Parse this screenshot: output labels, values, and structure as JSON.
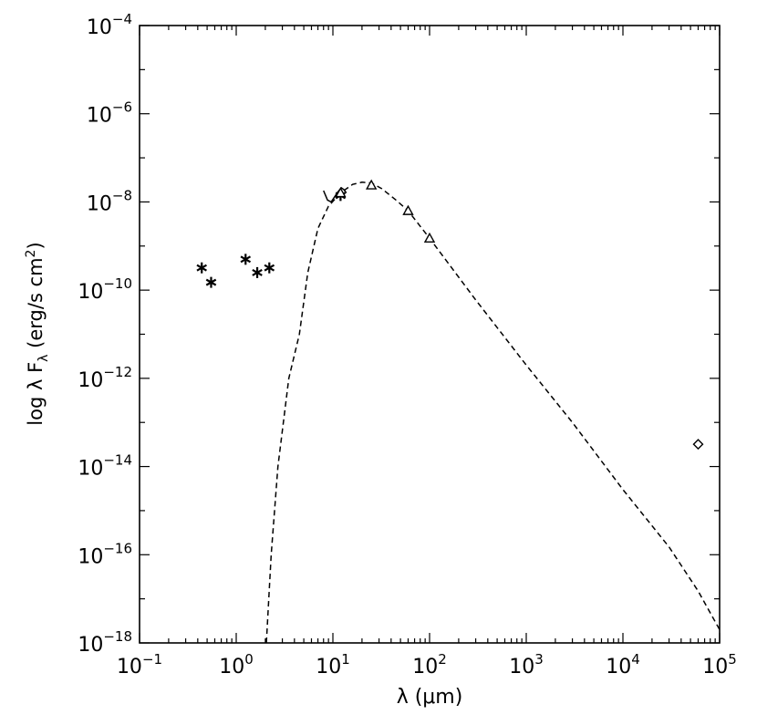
{
  "chart_data": {
    "type": "scatter",
    "x_scale": "log",
    "y_scale": "log",
    "xlabel": "λ (μm)",
    "ylabel": "log λ F",
    "ylabel_sub": "λ",
    "ylabel_units": " (erg/s cm",
    "ylabel_units_sup": "2",
    "ylabel_close": ")",
    "xlim": [
      0.1,
      100000
    ],
    "ylim": [
      1e-18,
      0.0001
    ],
    "x_ticks": [
      {
        "value": 0.1,
        "base": "10",
        "exp": "−1"
      },
      {
        "value": 1,
        "base": "10",
        "exp": "0"
      },
      {
        "value": 10,
        "base": "10",
        "exp": "1"
      },
      {
        "value": 100,
        "base": "10",
        "exp": "2"
      },
      {
        "value": 1000,
        "base": "10",
        "exp": "3"
      },
      {
        "value": 10000,
        "base": "10",
        "exp": "4"
      },
      {
        "value": 100000,
        "base": "10",
        "exp": "5"
      }
    ],
    "y_ticks": [
      {
        "value": 1e-18,
        "base": "10",
        "exp": "−18"
      },
      {
        "value": 1e-16,
        "base": "10",
        "exp": "−16"
      },
      {
        "value": 1e-14,
        "base": "10",
        "exp": "−14"
      },
      {
        "value": 1e-12,
        "base": "10",
        "exp": "−12"
      },
      {
        "value": 1e-10,
        "base": "10",
        "exp": "−10"
      },
      {
        "value": 1e-08,
        "base": "10",
        "exp": "−8"
      },
      {
        "value": 1e-06,
        "base": "10",
        "exp": "−6"
      },
      {
        "value": 0.0001,
        "base": "10",
        "exp": "−4"
      }
    ],
    "grid": false,
    "series": [
      {
        "marker": "asterisk",
        "points": [
          {
            "x": 0.44,
            "y": 3.2e-10
          },
          {
            "x": 0.55,
            "y": 1.5e-10
          },
          {
            "x": 1.25,
            "y": 5e-10
          },
          {
            "x": 1.65,
            "y": 2.5e-10
          },
          {
            "x": 2.2,
            "y": 3.2e-10
          },
          {
            "x": 12,
            "y": 1.4e-08
          }
        ]
      },
      {
        "marker": "triangle",
        "points": [
          {
            "x": 12,
            "y": 1.6e-08
          },
          {
            "x": 25,
            "y": 2.4e-08
          },
          {
            "x": 60,
            "y": 6.3e-09
          },
          {
            "x": 100,
            "y": 1.5e-09
          }
        ]
      },
      {
        "marker": "diamond",
        "points": [
          {
            "x": 60000,
            "y": 3.2e-14
          }
        ]
      },
      {
        "marker": "none",
        "line": "solid",
        "points": [
          {
            "x": 8.0,
            "y": 1.8e-08
          },
          {
            "x": 8.8,
            "y": 1.1e-08
          },
          {
            "x": 9.6,
            "y": 1e-08
          },
          {
            "x": 10.4,
            "y": 1.3e-08
          },
          {
            "x": 11.3,
            "y": 1.7e-08
          },
          {
            "x": 12.2,
            "y": 2.1e-08
          },
          {
            "x": 13.0,
            "y": 1.9e-08
          },
          {
            "x": 13.8,
            "y": 1.6e-08
          }
        ]
      },
      {
        "marker": "none",
        "line": "dashed",
        "points": [
          {
            "x": 2.05,
            "y": 1e-18
          },
          {
            "x": 2.3,
            "y": 1e-16
          },
          {
            "x": 2.7,
            "y": 1e-14
          },
          {
            "x": 3.5,
            "y": 1e-12
          },
          {
            "x": 4.5,
            "y": 1e-11
          },
          {
            "x": 5.5,
            "y": 2.5e-10
          },
          {
            "x": 7,
            "y": 2.5e-09
          },
          {
            "x": 9,
            "y": 8e-09
          },
          {
            "x": 12,
            "y": 1.6e-08
          },
          {
            "x": 16,
            "y": 2.5e-08
          },
          {
            "x": 20,
            "y": 2.8e-08
          },
          {
            "x": 25,
            "y": 2.7e-08
          },
          {
            "x": 32,
            "y": 2e-08
          },
          {
            "x": 45,
            "y": 1.1e-08
          },
          {
            "x": 60,
            "y": 6.3e-09
          },
          {
            "x": 100,
            "y": 1.5e-09
          },
          {
            "x": 300,
            "y": 6e-11
          },
          {
            "x": 1000,
            "y": 2e-12
          },
          {
            "x": 3000,
            "y": 1e-13
          },
          {
            "x": 10000,
            "y": 3e-15
          },
          {
            "x": 30000,
            "y": 1.5e-16
          },
          {
            "x": 60000,
            "y": 1.5e-17
          },
          {
            "x": 100000,
            "y": 2e-18
          }
        ]
      }
    ]
  }
}
